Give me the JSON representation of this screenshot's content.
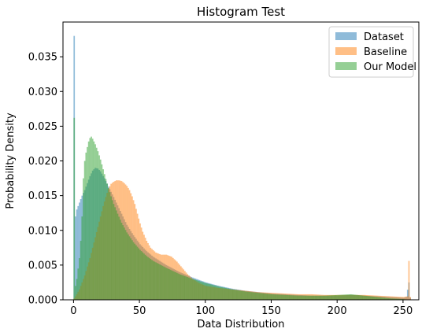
{
  "chart_data": {
    "type": "histogram",
    "title": "Histogram Test",
    "xlabel": "Data Distribution",
    "ylabel": "Probability Density",
    "xlim": [
      -8,
      262
    ],
    "ylim": [
      0,
      0.04
    ],
    "xticks": [
      0,
      50,
      100,
      150,
      200,
      250
    ],
    "yticks": [
      0.0,
      0.005,
      0.01,
      0.015,
      0.02,
      0.025,
      0.03,
      0.035
    ],
    "ytick_labels": [
      "0.000",
      "0.005",
      "0.010",
      "0.015",
      "0.020",
      "0.025",
      "0.030",
      "0.035"
    ],
    "bins": "0-255 step 1",
    "legend_position": "upper right",
    "series": [
      {
        "name": "Dataset",
        "color": "#1f77b4",
        "alpha": 0.5,
        "points": [
          [
            0,
            0.038
          ],
          [
            1,
            0.012
          ],
          [
            2,
            0.013
          ],
          [
            3,
            0.0135
          ],
          [
            4,
            0.014
          ],
          [
            5,
            0.0145
          ],
          [
            6,
            0.015
          ],
          [
            8,
            0.0158
          ],
          [
            10,
            0.0168
          ],
          [
            12,
            0.0178
          ],
          [
            14,
            0.0186
          ],
          [
            16,
            0.019
          ],
          [
            18,
            0.0189
          ],
          [
            20,
            0.0185
          ],
          [
            23,
            0.0175
          ],
          [
            26,
            0.0163
          ],
          [
            30,
            0.0148
          ],
          [
            35,
            0.0128
          ],
          [
            40,
            0.0108
          ],
          [
            45,
            0.0093
          ],
          [
            50,
            0.008
          ],
          [
            55,
            0.007
          ],
          [
            60,
            0.0062
          ],
          [
            70,
            0.005
          ],
          [
            80,
            0.004
          ],
          [
            90,
            0.0032
          ],
          [
            100,
            0.0025
          ],
          [
            110,
            0.002
          ],
          [
            120,
            0.0016
          ],
          [
            130,
            0.0013
          ],
          [
            140,
            0.0011
          ],
          [
            150,
            0.0009
          ],
          [
            160,
            0.0008
          ],
          [
            170,
            0.0007
          ],
          [
            180,
            0.0006
          ],
          [
            190,
            0.0006
          ],
          [
            200,
            0.0006
          ],
          [
            210,
            0.0007
          ],
          [
            220,
            0.0006
          ],
          [
            230,
            0.0005
          ],
          [
            240,
            0.0004
          ],
          [
            250,
            0.0003
          ],
          [
            252,
            0.0004
          ],
          [
            254,
            0.0025
          ],
          [
            255,
            0.0003
          ]
        ]
      },
      {
        "name": "Baseline",
        "color": "#ff7f0e",
        "alpha": 0.5,
        "points": [
          [
            0,
            0.0002
          ],
          [
            2,
            0.0008
          ],
          [
            4,
            0.0015
          ],
          [
            6,
            0.0025
          ],
          [
            8,
            0.0035
          ],
          [
            10,
            0.0048
          ],
          [
            12,
            0.006
          ],
          [
            14,
            0.0075
          ],
          [
            16,
            0.009
          ],
          [
            18,
            0.0105
          ],
          [
            20,
            0.012
          ],
          [
            22,
            0.0135
          ],
          [
            24,
            0.0148
          ],
          [
            26,
            0.016
          ],
          [
            28,
            0.0167
          ],
          [
            30,
            0.017
          ],
          [
            32,
            0.0172
          ],
          [
            34,
            0.0172
          ],
          [
            36,
            0.0171
          ],
          [
            38,
            0.0168
          ],
          [
            40,
            0.0164
          ],
          [
            42,
            0.0158
          ],
          [
            44,
            0.0149
          ],
          [
            46,
            0.0138
          ],
          [
            48,
            0.0124
          ],
          [
            50,
            0.011
          ],
          [
            52,
            0.0098
          ],
          [
            55,
            0.0085
          ],
          [
            58,
            0.0075
          ],
          [
            62,
            0.0068
          ],
          [
            66,
            0.0065
          ],
          [
            70,
            0.0065
          ],
          [
            74,
            0.0062
          ],
          [
            78,
            0.0055
          ],
          [
            82,
            0.0046
          ],
          [
            86,
            0.0037
          ],
          [
            90,
            0.003
          ],
          [
            95,
            0.0024
          ],
          [
            100,
            0.002
          ],
          [
            110,
            0.0017
          ],
          [
            120,
            0.0015
          ],
          [
            130,
            0.0013
          ],
          [
            140,
            0.0011
          ],
          [
            150,
            0.001
          ],
          [
            160,
            0.0009
          ],
          [
            170,
            0.0008
          ],
          [
            180,
            0.0008
          ],
          [
            190,
            0.0007
          ],
          [
            200,
            0.0007
          ],
          [
            210,
            0.0007
          ],
          [
            220,
            0.0007
          ],
          [
            230,
            0.0006
          ],
          [
            240,
            0.0005
          ],
          [
            250,
            0.0004
          ],
          [
            253,
            0.0005
          ],
          [
            254,
            0.0056
          ],
          [
            255,
            0.0004
          ]
        ]
      },
      {
        "name": "Our Model",
        "color": "#2ca02c",
        "alpha": 0.5,
        "points": [
          [
            0,
            0.0262
          ],
          [
            1,
            0.002
          ],
          [
            2,
            0.003
          ],
          [
            3,
            0.0045
          ],
          [
            4,
            0.006
          ],
          [
            5,
            0.0085
          ],
          [
            6,
            0.012
          ],
          [
            7,
            0.0175
          ],
          [
            8,
            0.02
          ],
          [
            9,
            0.0212
          ],
          [
            10,
            0.022
          ],
          [
            11,
            0.0228
          ],
          [
            12,
            0.0233
          ],
          [
            13,
            0.0235
          ],
          [
            14,
            0.0232
          ],
          [
            15,
            0.0228
          ],
          [
            16,
            0.0224
          ],
          [
            18,
            0.0214
          ],
          [
            20,
            0.0202
          ],
          [
            22,
            0.0188
          ],
          [
            24,
            0.0174
          ],
          [
            26,
            0.0161
          ],
          [
            28,
            0.0149
          ],
          [
            30,
            0.0138
          ],
          [
            33,
            0.0124
          ],
          [
            36,
            0.0111
          ],
          [
            40,
            0.0097
          ],
          [
            45,
            0.0083
          ],
          [
            50,
            0.0072
          ],
          [
            55,
            0.0063
          ],
          [
            60,
            0.0056
          ],
          [
            70,
            0.0046
          ],
          [
            80,
            0.0037
          ],
          [
            90,
            0.003
          ],
          [
            100,
            0.0024
          ],
          [
            110,
            0.0019
          ],
          [
            120,
            0.0015
          ],
          [
            130,
            0.0012
          ],
          [
            140,
            0.001
          ],
          [
            150,
            0.0008
          ],
          [
            160,
            0.0007
          ],
          [
            170,
            0.0006
          ],
          [
            180,
            0.0006
          ],
          [
            190,
            0.0006
          ],
          [
            200,
            0.0007
          ],
          [
            210,
            0.0008
          ],
          [
            220,
            0.0006
          ],
          [
            230,
            0.0004
          ],
          [
            240,
            0.0002
          ],
          [
            250,
            0.0001
          ],
          [
            255,
            0.0
          ]
        ]
      }
    ]
  }
}
